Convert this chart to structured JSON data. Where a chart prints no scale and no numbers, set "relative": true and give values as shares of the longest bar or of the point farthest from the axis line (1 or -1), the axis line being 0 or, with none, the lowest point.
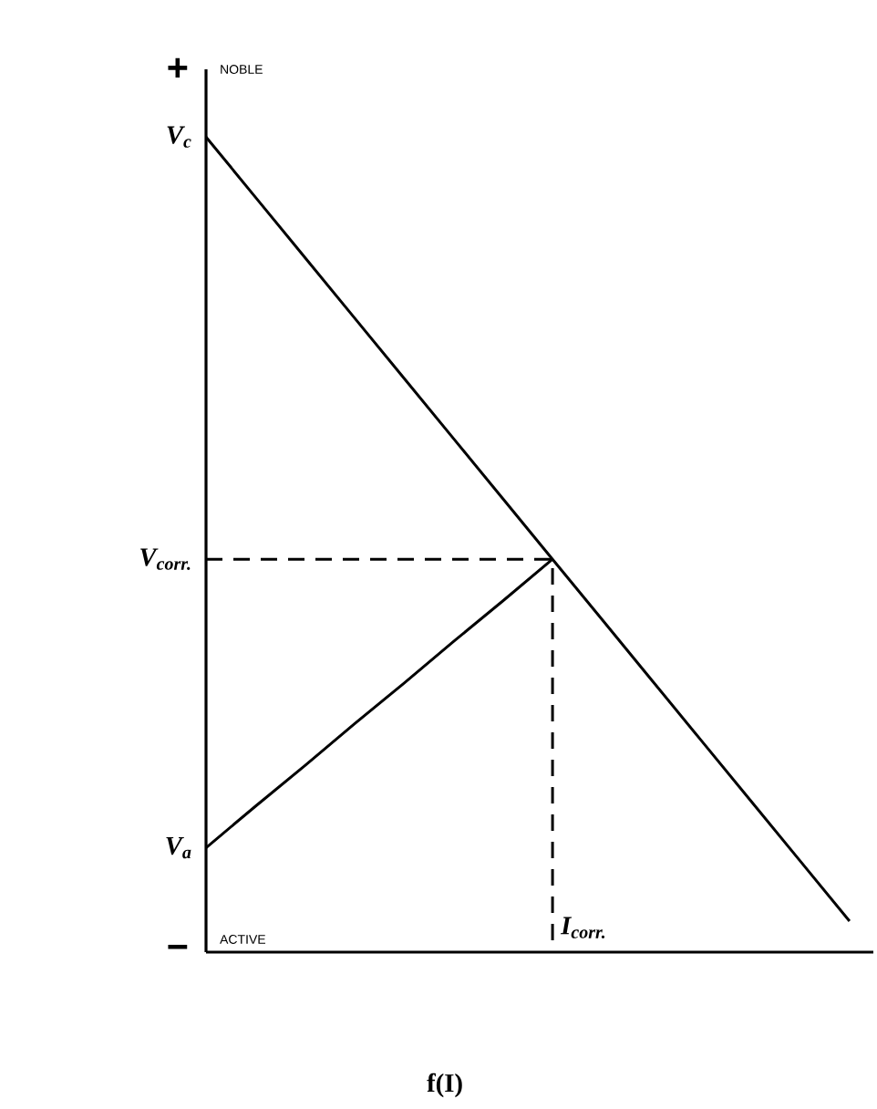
{
  "chart_data": {
    "type": "line",
    "relative": true,
    "xlabel": "f(I)",
    "marker": "none",
    "categories": [
      null,
      null,
      null,
      null,
      null,
      null,
      null,
      null,
      null,
      null,
      null,
      null,
      null,
      null
    ],
    "series": [
      {
        "color": "#000000",
        "values": [
          1,
          0.926,
          0.852,
          0.778,
          0.704,
          0.63,
          0.556,
          0.482,
          0.408,
          0.334,
          0.26,
          0.186,
          0.112,
          0.038
        ]
      },
      {
        "color": "#000000",
        "values": [
          0.128,
          0.179,
          0.229,
          0.28,
          0.33,
          0.381,
          0.431,
          0.482,
          null,
          null,
          null,
          null,
          null,
          null
        ]
      }
    ],
    "annotations": [
      "+",
      "NOBLE",
      "−",
      "ACTIVE",
      "I$_{corr.}$",
      "V$_{c}$",
      "V$_{corr.}$",
      "V$_{a}$"
    ]
  }
}
